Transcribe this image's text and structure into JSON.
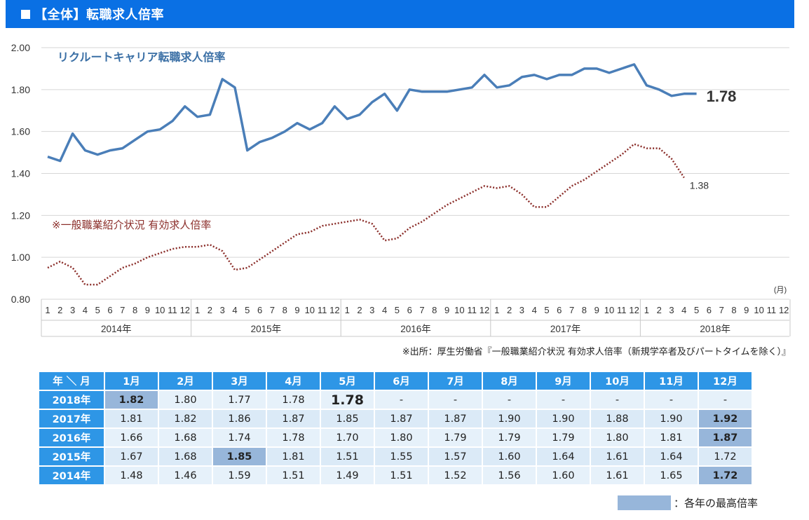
{
  "header": {
    "title": "【全体】転職求人倍率"
  },
  "chart_data": {
    "type": "line",
    "ylim": [
      0.8,
      2.0
    ],
    "yticks": [
      "0.80",
      "1.00",
      "1.20",
      "1.40",
      "1.60",
      "1.80",
      "2.00"
    ],
    "month_ticks": [
      "1",
      "2",
      "3",
      "4",
      "5",
      "6",
      "7",
      "8",
      "9",
      "10",
      "11",
      "12"
    ],
    "years": [
      "2014年",
      "2015年",
      "2016年",
      "2017年",
      "2018年"
    ],
    "month_unit": "(月)",
    "series": [
      {
        "name": "リクルートキャリア転職求人倍率",
        "color": "#4a7eb8",
        "style": "solid",
        "values": [
          1.48,
          1.46,
          1.59,
          1.51,
          1.49,
          1.51,
          1.52,
          1.56,
          1.6,
          1.61,
          1.65,
          1.72,
          1.67,
          1.68,
          1.85,
          1.81,
          1.51,
          1.55,
          1.57,
          1.6,
          1.64,
          1.61,
          1.64,
          1.72,
          1.66,
          1.68,
          1.74,
          1.78,
          1.7,
          1.8,
          1.79,
          1.79,
          1.79,
          1.8,
          1.81,
          1.87,
          1.81,
          1.82,
          1.86,
          1.87,
          1.85,
          1.87,
          1.87,
          1.9,
          1.9,
          1.88,
          1.9,
          1.92,
          1.82,
          1.8,
          1.77,
          1.78,
          1.78
        ],
        "end_label": "1.78"
      },
      {
        "name": "※一般職業紹介状況 有効求人倍率",
        "color": "#8b2e2a",
        "style": "dotted",
        "values": [
          0.95,
          0.98,
          0.95,
          0.87,
          0.87,
          0.91,
          0.95,
          0.97,
          1.0,
          1.02,
          1.04,
          1.05,
          1.05,
          1.06,
          1.03,
          0.94,
          0.95,
          0.99,
          1.03,
          1.07,
          1.11,
          1.12,
          1.15,
          1.16,
          1.17,
          1.18,
          1.16,
          1.08,
          1.09,
          1.14,
          1.17,
          1.21,
          1.25,
          1.28,
          1.31,
          1.34,
          1.33,
          1.34,
          1.3,
          1.24,
          1.24,
          1.29,
          1.34,
          1.37,
          1.41,
          1.45,
          1.49,
          1.54,
          1.52,
          1.52,
          1.47,
          1.38
        ],
        "end_label": "1.38"
      }
    ]
  },
  "source_note": "※出所：厚生労働省『一般職業紹介状況 有効求人倍率（新規学卒者及びパートタイムを除く）』",
  "table": {
    "corner": "年 ＼ 月",
    "months": [
      "1月",
      "2月",
      "3月",
      "4月",
      "5月",
      "6月",
      "7月",
      "8月",
      "9月",
      "10月",
      "11月",
      "12月"
    ],
    "rows": [
      {
        "year": "2018年",
        "values": [
          "1.82",
          "1.80",
          "1.77",
          "1.78",
          "1.78",
          "-",
          "-",
          "-",
          "-",
          "-",
          "-",
          "-"
        ],
        "max_index": 0,
        "current_index": 4
      },
      {
        "year": "2017年",
        "values": [
          "1.81",
          "1.82",
          "1.86",
          "1.87",
          "1.85",
          "1.87",
          "1.87",
          "1.90",
          "1.90",
          "1.88",
          "1.90",
          "1.92"
        ],
        "max_index": 11
      },
      {
        "year": "2016年",
        "values": [
          "1.66",
          "1.68",
          "1.74",
          "1.78",
          "1.70",
          "1.80",
          "1.79",
          "1.79",
          "1.79",
          "1.80",
          "1.81",
          "1.87"
        ],
        "max_index": 11
      },
      {
        "year": "2015年",
        "values": [
          "1.67",
          "1.68",
          "1.85",
          "1.81",
          "1.51",
          "1.55",
          "1.57",
          "1.60",
          "1.64",
          "1.61",
          "1.64",
          "1.72"
        ],
        "max_index": 2
      },
      {
        "year": "2014年",
        "values": [
          "1.48",
          "1.46",
          "1.59",
          "1.51",
          "1.49",
          "1.51",
          "1.52",
          "1.56",
          "1.60",
          "1.61",
          "1.65",
          "1.72"
        ],
        "max_index": 11
      }
    ]
  },
  "legend": {
    "label": "：各年の最高倍率",
    "color": "#97b6da"
  }
}
